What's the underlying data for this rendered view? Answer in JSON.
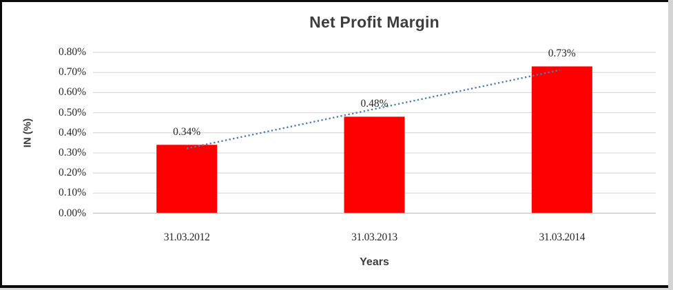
{
  "chart_data": {
    "type": "bar",
    "title": "Net Profit Margin",
    "xlabel": "Years",
    "ylabel": "IN (%)",
    "categories": [
      "31.03.2012",
      "31.03.2013",
      "31.03.2014"
    ],
    "series": [
      {
        "name": "Net Profit Margin",
        "values": [
          0.34,
          0.48,
          0.73
        ]
      }
    ],
    "data_labels": [
      "0.34%",
      "0.48%",
      "0.73%"
    ],
    "yticks": [
      "0.00%",
      "0.10%",
      "0.20%",
      "0.30%",
      "0.40%",
      "0.50%",
      "0.60%",
      "0.70%",
      "0.80%"
    ],
    "ytick_values": [
      0,
      0.1,
      0.2,
      0.3,
      0.4,
      0.5,
      0.6,
      0.7,
      0.8
    ],
    "ylim": [
      0,
      0.8
    ],
    "grid": true,
    "legend": "none",
    "trendline": {
      "type": "linear",
      "style": "dotted",
      "start_value": 0.322,
      "end_value": 0.712
    }
  },
  "colors": {
    "bar": "#ff0000",
    "trendline": "#4a7ebb",
    "gridline": "#d9d9d9",
    "axis_line": "#bfbfbf",
    "title_text": "#3d3d3d",
    "label_text": "#262626",
    "frame_border": "#0a0a0a",
    "frame_border_right": "#d4d4d4",
    "background": "#ffffff"
  }
}
